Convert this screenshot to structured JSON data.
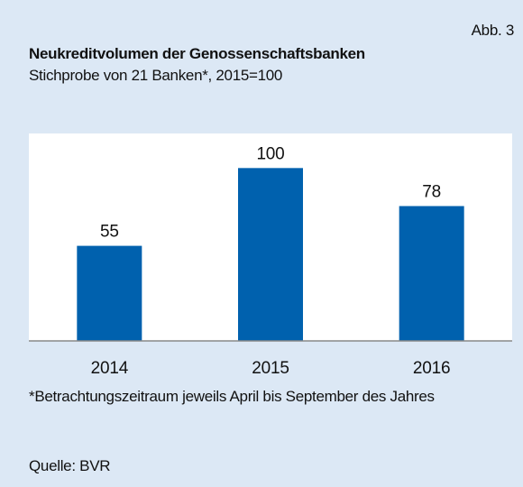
{
  "chart_data": {
    "type": "bar",
    "figure_label": "Abb. 3",
    "title": "Neukreditvolumen der Genossenschaftsbanken",
    "subtitle": "Stichprobe von 21 Banken*, 2015=100",
    "categories": [
      "2014",
      "2015",
      "2016"
    ],
    "values": [
      55,
      100,
      78
    ],
    "color": "#0061ae",
    "ylim": [
      0,
      120
    ],
    "footnote": "*Betrachtungszeitraum jeweils April bis September des Jahres",
    "source": "Quelle: BVR"
  }
}
